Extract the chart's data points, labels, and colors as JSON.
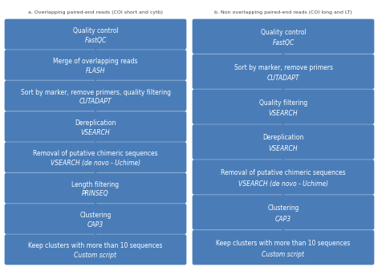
{
  "fig_width": 4.86,
  "fig_height": 3.38,
  "dpi": 100,
  "bg_color": "#ffffff",
  "box_color": "#4a7db8",
  "box_edge_color": "#4a7db8",
  "text_color": "#ffffff",
  "arrow_color": "#5588bb",
  "label_color": "#444444",
  "col_a_label": "a. Overlapping paired-end reads (COI short and cytb)",
  "col_b_label": "b. Non overlapping paired-end reads (COI long and LT)",
  "col_a_steps": [
    {
      "line1": "Quality control",
      "line2": "FastQC"
    },
    {
      "line1": "Merge of overlapping reads",
      "line2": "FLASH"
    },
    {
      "line1": "Sort by marker, remove primers, quality filtering",
      "line2": "CUTADAPT"
    },
    {
      "line1": "Dereplication",
      "line2": "VSEARCH"
    },
    {
      "line1": "Removal of putative chimeric sequences",
      "line2": "VSEARCH (de novo - Uchime)"
    },
    {
      "line1": "Length filtering",
      "line2": "PRINSEQ"
    },
    {
      "line1": "Clustering",
      "line2": "CAP3"
    },
    {
      "line1": "Keep clusters with more than 10 sequences",
      "line2": "Custom script"
    }
  ],
  "col_b_steps": [
    {
      "line1": "Quality control",
      "line2": "FastQC"
    },
    {
      "line1": "Sort by marker, remove primers",
      "line2": "CUTADAPT"
    },
    {
      "line1": "Quality filtering",
      "line2": "VSEARCH"
    },
    {
      "line1": "Dereplication",
      "line2": "VSEARCH"
    },
    {
      "line1": "Removal of putative chimeric sequences",
      "line2": "VSEARCH (de novo - Uchime)"
    },
    {
      "line1": "Clustering",
      "line2": "CAP3"
    },
    {
      "line1": "Keep clusters with more than 10 sequences",
      "line2": "Custom script"
    }
  ]
}
